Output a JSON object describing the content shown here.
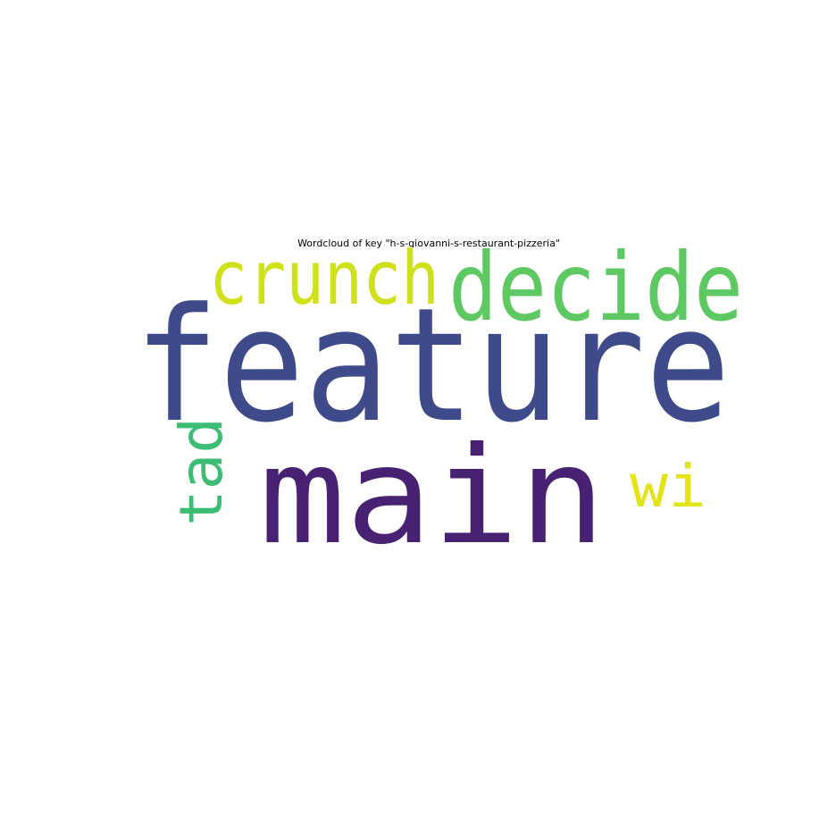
{
  "chart_data": {
    "type": "wordcloud",
    "title": "Wordcloud of key \"h-s-giovanni-s-restaurant-pizzeria\"",
    "background": "#ffffff",
    "colormap": "viridis",
    "words": [
      {
        "text": "feature",
        "weight": 1.0,
        "color": "#3e4a89",
        "rotated": false
      },
      {
        "text": "main",
        "weight": 0.86,
        "color": "#482173",
        "rotated": false
      },
      {
        "text": "decide",
        "weight": 0.62,
        "color": "#5ec962",
        "rotated": false
      },
      {
        "text": "crunch",
        "weight": 0.5,
        "color": "#d0e11c",
        "rotated": false
      },
      {
        "text": "tad",
        "weight": 0.4,
        "color": "#3dbc74",
        "rotated": true
      },
      {
        "text": "wi",
        "weight": 0.4,
        "color": "#e2e418",
        "rotated": false
      }
    ]
  }
}
